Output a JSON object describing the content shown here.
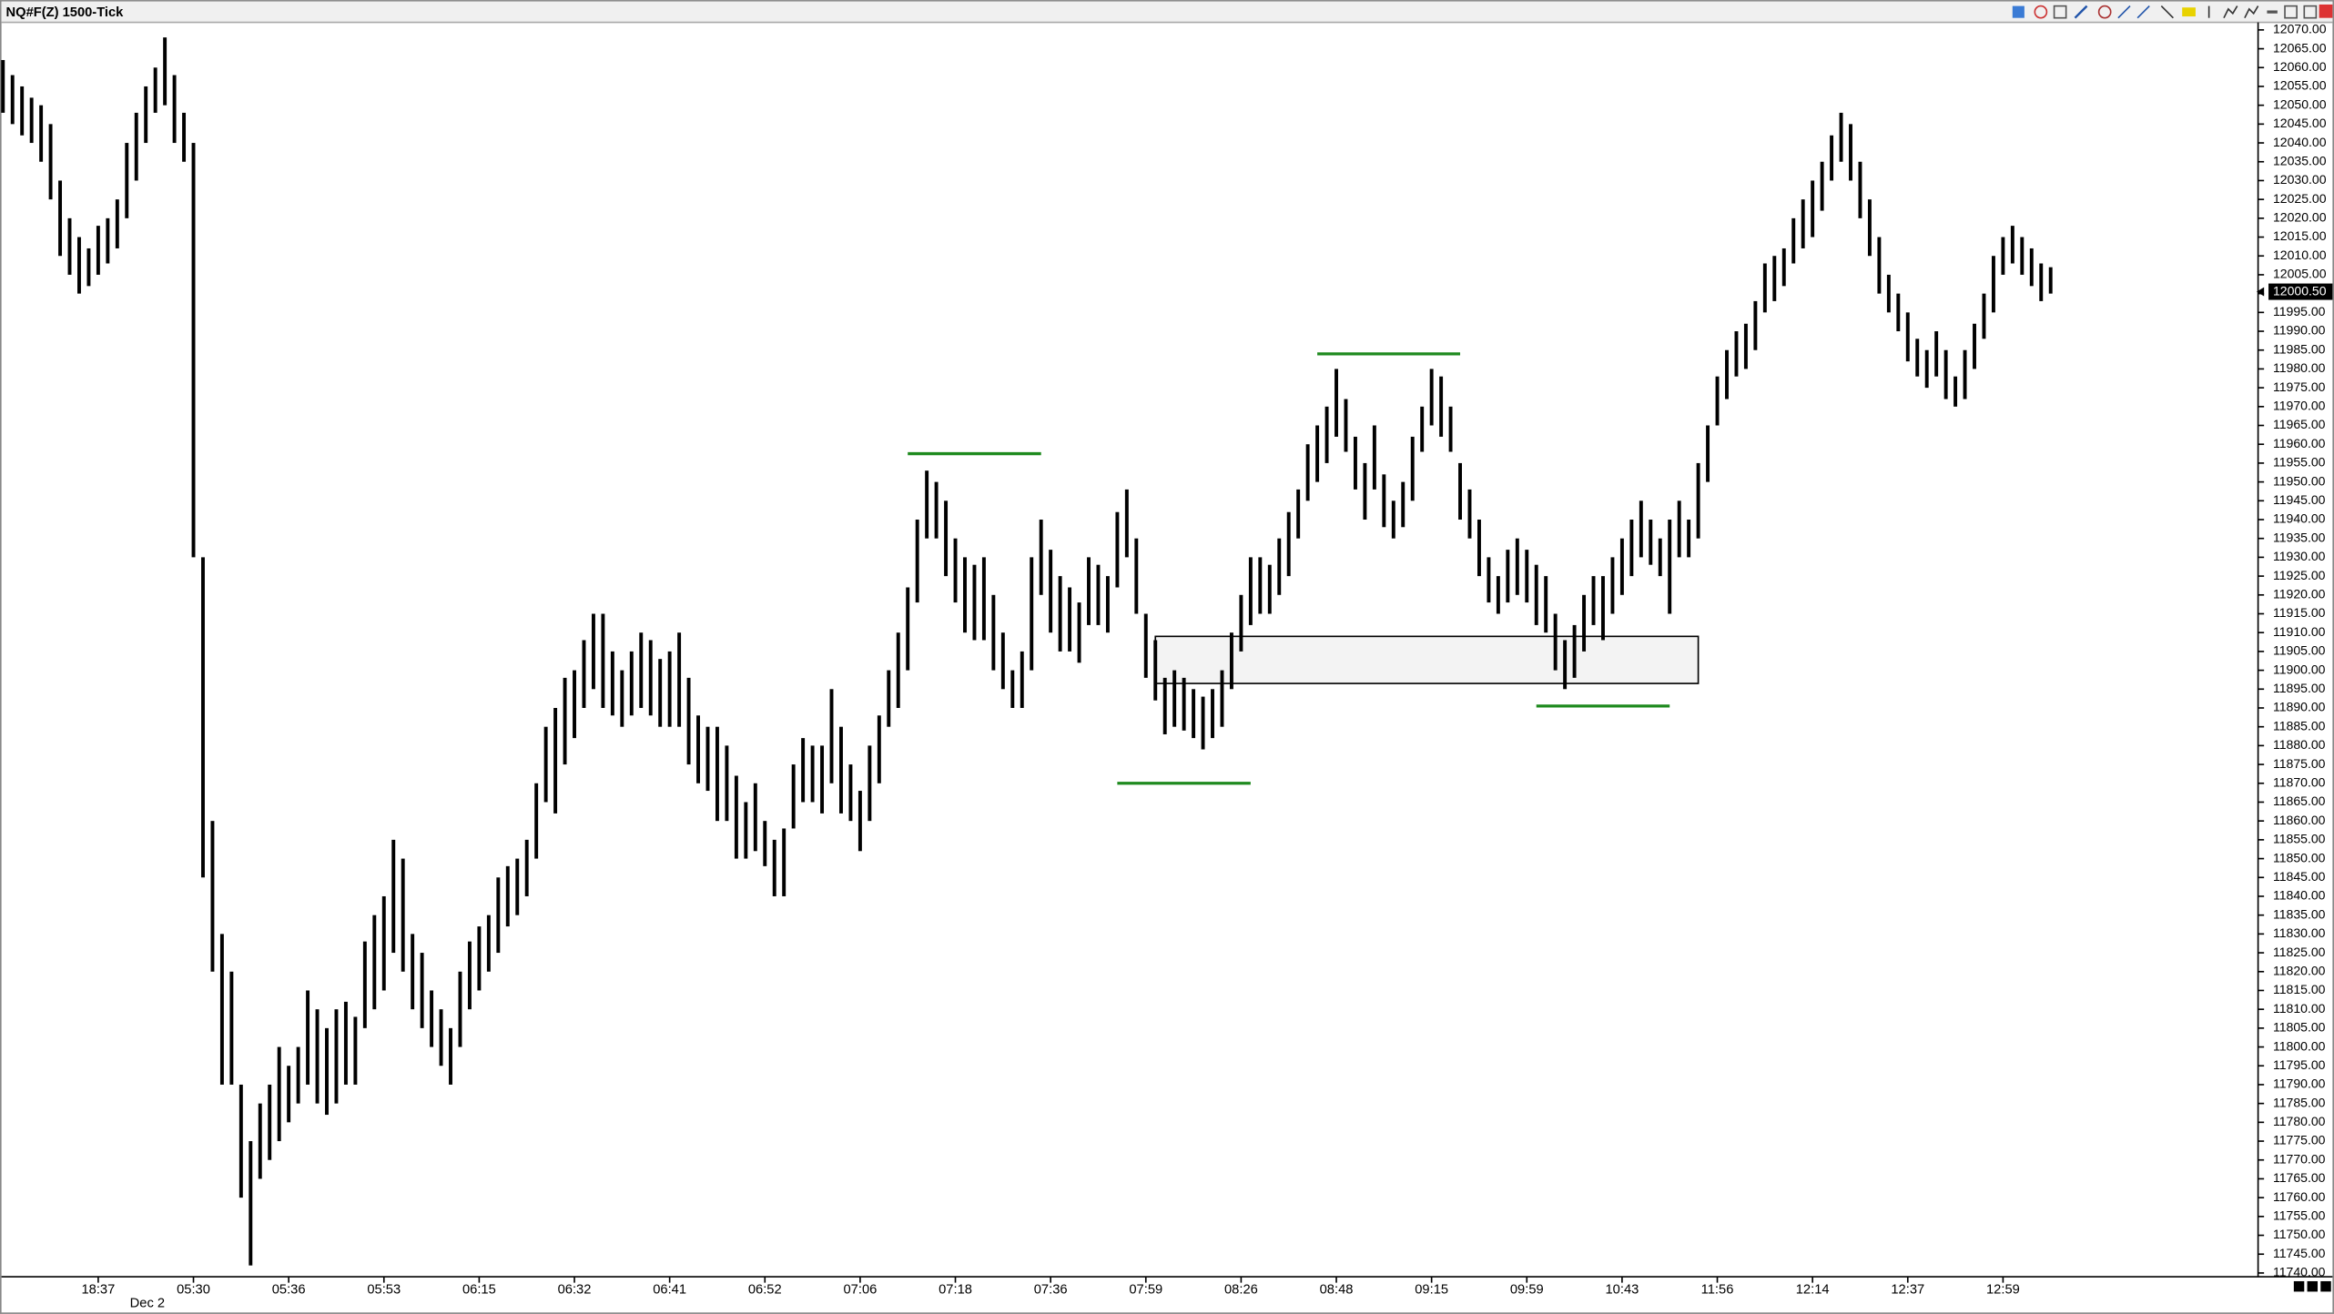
{
  "chart_data": {
    "type": "hilo",
    "title": "NQ#F(Z) 1500-Tick",
    "date_label": "Dec 2",
    "bar_color": "#000000",
    "high": [
      12062,
      12058,
      12055,
      12052,
      12050,
      12045,
      12030,
      12020,
      12015,
      12012,
      12018,
      12020,
      12025,
      12040,
      12048,
      12055,
      12060,
      12068,
      12058,
      12048,
      12040,
      11930,
      11860,
      11830,
      11820,
      11790,
      11775,
      11785,
      11790,
      11800,
      11795,
      11800,
      11815,
      11810,
      11805,
      11810,
      11812,
      11808,
      11828,
      11835,
      11840,
      11855,
      11850,
      11830,
      11825,
      11815,
      11810,
      11805,
      11820,
      11828,
      11832,
      11835,
      11845,
      11848,
      11850,
      11855,
      11870,
      11885,
      11890,
      11898,
      11900,
      11908,
      11915,
      11915,
      11905,
      11900,
      11905,
      11910,
      11908,
      11903,
      11905,
      11910,
      11898,
      11888,
      11885,
      11885,
      11880,
      11872,
      11865,
      11870,
      11860,
      11855,
      11858,
      11875,
      11882,
      11880,
      11880,
      11895,
      11885,
      11875,
      11868,
      11880,
      11888,
      11900,
      11910,
      11922,
      11940,
      11953,
      11950,
      11945,
      11935,
      11930,
      11928,
      11930,
      11920,
      11910,
      11900,
      11905,
      11930,
      11940,
      11932,
      11925,
      11922,
      11918,
      11930,
      11928,
      11925,
      11942,
      11948,
      11935,
      11915,
      11908,
      11898,
      11900,
      11898,
      11895,
      11893,
      11895,
      11900,
      11910,
      11920,
      11930,
      11930,
      11928,
      11935,
      11942,
      11948,
      11960,
      11965,
      11970,
      11980,
      11972,
      11962,
      11955,
      11965,
      11952,
      11945,
      11950,
      11962,
      11970,
      11980,
      11978,
      11970,
      11955,
      11948,
      11940,
      11930,
      11925,
      11932,
      11935,
      11932,
      11928,
      11925,
      11915,
      11908,
      11912,
      11920,
      11925,
      11925,
      11930,
      11935,
      11940,
      11945,
      11940,
      11935,
      11940,
      11945,
      11940,
      11955,
      11965,
      11978,
      11985,
      11990,
      11992,
      11998,
      12008,
      12010,
      12012,
      12020,
      12025,
      12030,
      12035,
      12042,
      12048,
      12045,
      12035,
      12025,
      12015,
      12005,
      12000,
      11995,
      11988,
      11985,
      11990,
      11985,
      11978,
      11985,
      11992,
      12000,
      12010,
      12015,
      12018,
      12015,
      12012,
      12008,
      12007
    ],
    "low": [
      12048,
      12045,
      12042,
      12040,
      12035,
      12025,
      12010,
      12005,
      12000,
      12002,
      12005,
      12008,
      12012,
      12020,
      12030,
      12040,
      12048,
      12050,
      12040,
      12035,
      11930,
      11845,
      11820,
      11790,
      11790,
      11760,
      11742,
      11765,
      11770,
      11775,
      11780,
      11785,
      11790,
      11785,
      11782,
      11785,
      11790,
      11790,
      11805,
      11810,
      11815,
      11825,
      11820,
      11810,
      11805,
      11800,
      11795,
      11790,
      11800,
      11810,
      11815,
      11820,
      11825,
      11832,
      11835,
      11840,
      11850,
      11865,
      11862,
      11875,
      11882,
      11890,
      11895,
      11890,
      11888,
      11885,
      11888,
      11890,
      11888,
      11885,
      11885,
      11885,
      11875,
      11870,
      11868,
      11860,
      11860,
      11850,
      11850,
      11852,
      11848,
      11840,
      11840,
      11858,
      11865,
      11865,
      11862,
      11870,
      11862,
      11860,
      11852,
      11860,
      11870,
      11885,
      11890,
      11900,
      11918,
      11935,
      11935,
      11925,
      11918,
      11910,
      11908,
      11908,
      11900,
      11895,
      11890,
      11890,
      11900,
      11920,
      11910,
      11905,
      11905,
      11902,
      11912,
      11912,
      11910,
      11922,
      11930,
      11915,
      11898,
      11892,
      11883,
      11885,
      11884,
      11882,
      11879,
      11882,
      11885,
      11895,
      11905,
      11912,
      11915,
      11915,
      11920,
      11925,
      11935,
      11945,
      11950,
      11955,
      11962,
      11958,
      11948,
      11940,
      11948,
      11938,
      11935,
      11938,
      11945,
      11958,
      11965,
      11962,
      11958,
      11940,
      11935,
      11925,
      11918,
      11915,
      11918,
      11920,
      11918,
      11912,
      11910,
      11900,
      11895,
      11898,
      11905,
      11912,
      11908,
      11915,
      11920,
      11925,
      11930,
      11928,
      11925,
      11915,
      11930,
      11930,
      11935,
      11950,
      11965,
      11972,
      11978,
      11980,
      11985,
      11995,
      11998,
      12002,
      12008,
      12012,
      12015,
      12022,
      12030,
      12035,
      12030,
      12020,
      12010,
      12000,
      11995,
      11990,
      11982,
      11978,
      11975,
      11978,
      11972,
      11970,
      11972,
      11980,
      11988,
      11995,
      12005,
      12008,
      12005,
      12002,
      11998,
      12000
    ],
    "xlim": [
      0,
      236
    ],
    "xticks": [
      {
        "value": 10,
        "label": "18:37"
      },
      {
        "value": 20,
        "label": "05:30"
      },
      {
        "value": 30,
        "label": "05:36"
      },
      {
        "value": 40,
        "label": "05:53"
      },
      {
        "value": 50,
        "label": "06:15"
      },
      {
        "value": 60,
        "label": "06:32"
      },
      {
        "value": 70,
        "label": "06:41"
      },
      {
        "value": 80,
        "label": "06:52"
      },
      {
        "value": 90,
        "label": "07:06"
      },
      {
        "value": 100,
        "label": "07:18"
      },
      {
        "value": 110,
        "label": "07:36"
      },
      {
        "value": 120,
        "label": "07:59"
      },
      {
        "value": 130,
        "label": "08:26"
      },
      {
        "value": 140,
        "label": "08:48"
      },
      {
        "value": 150,
        "label": "09:15"
      },
      {
        "value": 160,
        "label": "09:59"
      },
      {
        "value": 170,
        "label": "10:43"
      },
      {
        "value": 180,
        "label": "11:56"
      },
      {
        "value": 190,
        "label": "12:14"
      },
      {
        "value": 200,
        "label": "12:37"
      },
      {
        "value": 210,
        "label": "12:59"
      }
    ],
    "ylim": [
      11739,
      12072
    ],
    "yticks": [
      {
        "value": 12070,
        "label": "12070.00"
      },
      {
        "value": 12065,
        "label": "12065.00"
      },
      {
        "value": 12060,
        "label": "12060.00"
      },
      {
        "value": 12055,
        "label": "12055.00"
      },
      {
        "value": 12050,
        "label": "12050.00"
      },
      {
        "value": 12045,
        "label": "12045.00"
      },
      {
        "value": 12040,
        "label": "12040.00"
      },
      {
        "value": 12035,
        "label": "12035.00"
      },
      {
        "value": 12030,
        "label": "12030.00"
      },
      {
        "value": 12025,
        "label": "12025.00"
      },
      {
        "value": 12020,
        "label": "12020.00"
      },
      {
        "value": 12015,
        "label": "12015.00"
      },
      {
        "value": 12010,
        "label": "12010.00"
      },
      {
        "value": 12005,
        "label": "12005.00"
      },
      {
        "value": 12000,
        "label": "12000.00"
      },
      {
        "value": 11995,
        "label": "11995.00"
      },
      {
        "value": 11990,
        "label": "11990.00"
      },
      {
        "value": 11985,
        "label": "11985.00"
      },
      {
        "value": 11980,
        "label": "11980.00"
      },
      {
        "value": 11975,
        "label": "11975.00"
      },
      {
        "value": 11970,
        "label": "11970.00"
      },
      {
        "value": 11965,
        "label": "11965.00"
      },
      {
        "value": 11960,
        "label": "11960.00"
      },
      {
        "value": 11955,
        "label": "11955.00"
      },
      {
        "value": 11950,
        "label": "11950.00"
      },
      {
        "value": 11945,
        "label": "11945.00"
      },
      {
        "value": 11940,
        "label": "11940.00"
      },
      {
        "value": 11935,
        "label": "11935.00"
      },
      {
        "value": 11930,
        "label": "11930.00"
      },
      {
        "value": 11925,
        "label": "11925.00"
      },
      {
        "value": 11920,
        "label": "11920.00"
      },
      {
        "value": 11915,
        "label": "11915.00"
      },
      {
        "value": 11910,
        "label": "11910.00"
      },
      {
        "value": 11905,
        "label": "11905.00"
      },
      {
        "value": 11900,
        "label": "11900.00"
      },
      {
        "value": 11895,
        "label": "11895.00"
      },
      {
        "value": 11890,
        "label": "11890.00"
      },
      {
        "value": 11885,
        "label": "11885.00"
      },
      {
        "value": 11880,
        "label": "11880.00"
      },
      {
        "value": 11875,
        "label": "11875.00"
      },
      {
        "value": 11870,
        "label": "11870.00"
      },
      {
        "value": 11865,
        "label": "11865.00"
      },
      {
        "value": 11860,
        "label": "11860.00"
      },
      {
        "value": 11855,
        "label": "11855.00"
      },
      {
        "value": 11850,
        "label": "11850.00"
      },
      {
        "value": 11845,
        "label": "11845.00"
      },
      {
        "value": 11840,
        "label": "11840.00"
      },
      {
        "value": 11835,
        "label": "11835.00"
      },
      {
        "value": 11830,
        "label": "11830.00"
      },
      {
        "value": 11825,
        "label": "11825.00"
      },
      {
        "value": 11820,
        "label": "11820.00"
      },
      {
        "value": 11815,
        "label": "11815.00"
      },
      {
        "value": 11810,
        "label": "11810.00"
      },
      {
        "value": 11805,
        "label": "11805.00"
      },
      {
        "value": 11800,
        "label": "11800.00"
      },
      {
        "value": 11795,
        "label": "11795.00"
      },
      {
        "value": 11790,
        "label": "11790.00"
      },
      {
        "value": 11785,
        "label": "11785.00"
      },
      {
        "value": 11780,
        "label": "11780.00"
      },
      {
        "value": 11775,
        "label": "11775.00"
      },
      {
        "value": 11770,
        "label": "11770.00"
      },
      {
        "value": 11765,
        "label": "11765.00"
      },
      {
        "value": 11760,
        "label": "11760.00"
      },
      {
        "value": 11755,
        "label": "11755.00"
      },
      {
        "value": 11750,
        "label": "11750.00"
      },
      {
        "value": 11745,
        "label": "11745.00"
      },
      {
        "value": 11740,
        "label": "11740.00"
      }
    ],
    "last_price": {
      "value": 12000.5,
      "label": "12000.50"
    },
    "levels": [
      {
        "price": 11957.5,
        "start": 95,
        "end": 109,
        "color": "#1e8a1e"
      },
      {
        "price": 11870,
        "start": 117,
        "end": 131,
        "color": "#1e8a1e"
      },
      {
        "price": 11984,
        "start": 138,
        "end": 153,
        "color": "#1e8a1e"
      },
      {
        "price": 11890.5,
        "start": 161,
        "end": 175,
        "color": "#1e8a1e"
      }
    ],
    "zone": {
      "top": 11909,
      "bottom": 11896.5,
      "start": 121,
      "end": 178
    }
  }
}
